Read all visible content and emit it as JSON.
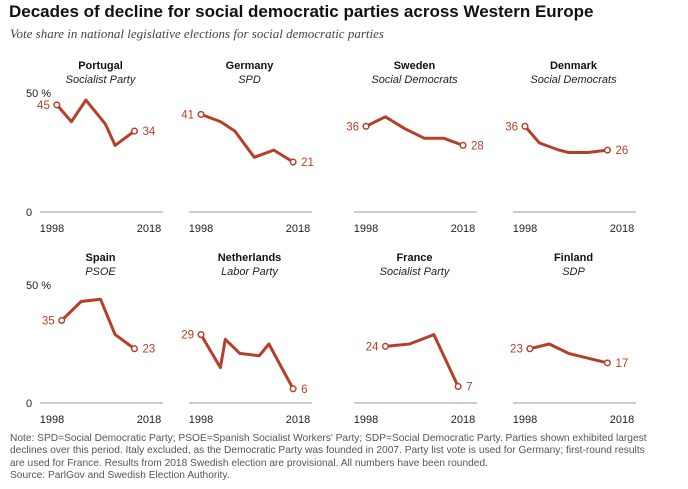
{
  "title": "Decades of decline for social democratic parties across Western Europe",
  "subtitle": "Vote share in national legislative elections for social democratic parties",
  "colors": {
    "line": "#b5402a",
    "axis": "#999999",
    "label": "#b5402a",
    "text": "#222222"
  },
  "chart_data": [
    {
      "type": "line",
      "title": "Portugal",
      "subtitle": "Socialist Party",
      "x": [
        1999,
        2002,
        2005,
        2009,
        2011,
        2015
      ],
      "y": [
        45,
        38,
        47,
        37,
        28,
        34
      ],
      "ylim": [
        0,
        50
      ],
      "yticks": [
        "0",
        "50 %"
      ],
      "xticks": [
        "1998",
        "2018"
      ],
      "xlim": [
        1998,
        2018
      ],
      "labels": {
        "first": "45",
        "last": "34"
      }
    },
    {
      "type": "line",
      "title": "Germany",
      "subtitle": "SPD",
      "x": [
        1998,
        2002,
        2005,
        2009,
        2013,
        2017
      ],
      "y": [
        41,
        38,
        34,
        23,
        26,
        21
      ],
      "ylim": [
        0,
        50
      ],
      "yticks": [],
      "xticks": [
        "1998",
        "2018"
      ],
      "xlim": [
        1998,
        2018
      ],
      "labels": {
        "first": "41",
        "last": "21"
      }
    },
    {
      "type": "line",
      "title": "Sweden",
      "subtitle": "Social Democrats",
      "x": [
        1998,
        2002,
        2006,
        2010,
        2014,
        2018
      ],
      "y": [
        36,
        40,
        35,
        31,
        31,
        28
      ],
      "ylim": [
        0,
        50
      ],
      "yticks": [],
      "xticks": [
        "1998",
        "2018"
      ],
      "xlim": [
        1998,
        2018
      ],
      "labels": {
        "first": "36",
        "last": "28"
      }
    },
    {
      "type": "line",
      "title": "Denmark",
      "subtitle": "Social Democrats",
      "x": [
        1998,
        2001,
        2005,
        2007,
        2011,
        2015
      ],
      "y": [
        36,
        29,
        26,
        25,
        25,
        26
      ],
      "ylim": [
        0,
        50
      ],
      "yticks": [],
      "xticks": [
        "1998",
        "2018"
      ],
      "xlim": [
        1998,
        2018
      ],
      "labels": {
        "first": "36",
        "last": "26"
      }
    },
    {
      "type": "line",
      "title": "Spain",
      "subtitle": "PSOE",
      "x": [
        2000,
        2004,
        2008,
        2011,
        2015
      ],
      "y": [
        35,
        43,
        44,
        29,
        23
      ],
      "ylim": [
        0,
        50
      ],
      "yticks": [
        "0",
        "50 %"
      ],
      "xticks": [
        "1998",
        "2018"
      ],
      "xlim": [
        1998,
        2018
      ],
      "labels": {
        "first": "35",
        "last": "23"
      }
    },
    {
      "type": "line",
      "title": "Netherlands",
      "subtitle": "Labor Party",
      "x": [
        1998,
        2002,
        2003,
        2006,
        2010,
        2012,
        2017
      ],
      "y": [
        29,
        15,
        27,
        21,
        20,
        25,
        6
      ],
      "ylim": [
        0,
        50
      ],
      "yticks": [],
      "xticks": [
        "1998",
        "2018"
      ],
      "xlim": [
        1998,
        2018
      ],
      "labels": {
        "first": "29",
        "last": "6"
      }
    },
    {
      "type": "line",
      "title": "France",
      "subtitle": "Socialist Party",
      "x": [
        2002,
        2007,
        2012,
        2017
      ],
      "y": [
        24,
        25,
        29,
        7
      ],
      "ylim": [
        0,
        50
      ],
      "yticks": [],
      "xticks": [
        "1998",
        "2018"
      ],
      "xlim": [
        1998,
        2018
      ],
      "labels": {
        "first": "24",
        "last": "7"
      }
    },
    {
      "type": "line",
      "title": "Finland",
      "subtitle": "SDP",
      "x": [
        1999,
        2003,
        2007,
        2011,
        2015
      ],
      "y": [
        23,
        25,
        21,
        19,
        17
      ],
      "ylim": [
        0,
        50
      ],
      "yticks": [],
      "xticks": [
        "1998",
        "2018"
      ],
      "xlim": [
        1998,
        2018
      ],
      "labels": {
        "first": "23",
        "last": "17"
      }
    }
  ],
  "notes": [
    "Note: SPD=Social Democratic Party; PSOE=Spanish Socialist Workers' Party; SDP=Social Democratic Party. Parties shown exhibited largest",
    "declines over this period. Italy excluded, as the Democratic Party was founded in 2007. Party list vote is used for Germany; first-round results",
    "are used for France. Results from 2018 Swedish election are provisional. All numbers have been rounded.",
    "Source: ParlGov and Swedish Election Authority."
  ]
}
